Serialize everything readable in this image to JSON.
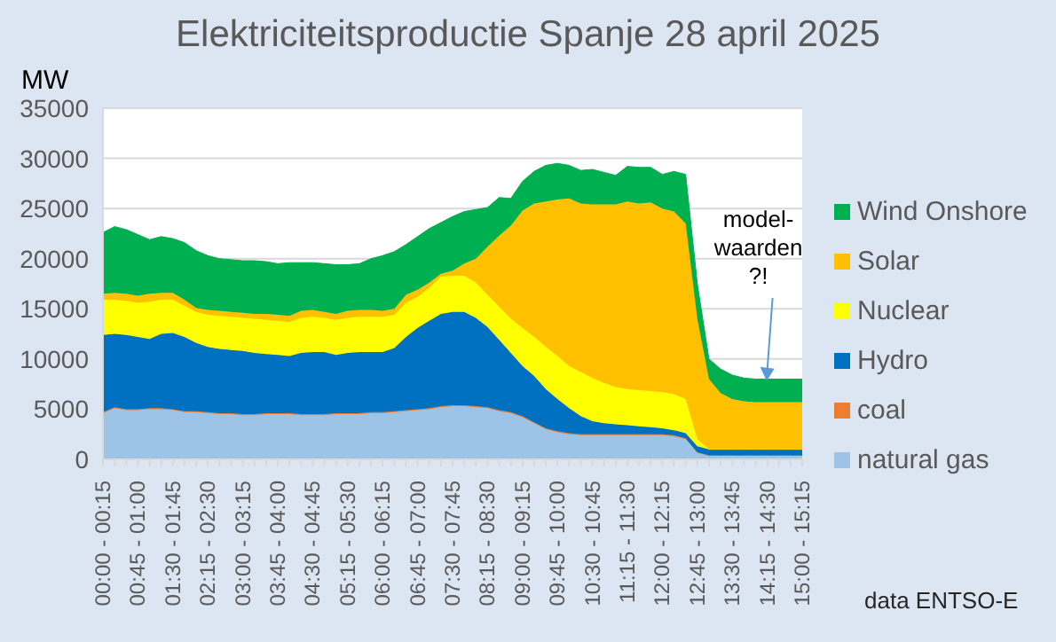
{
  "chart_data": {
    "type": "area",
    "title": "Elektriciteitsproductie Spanje 28 april 2025",
    "ylabel": "MW",
    "categories": [
      "00:00 - 00:15",
      null,
      null,
      "00:45 - 01:00",
      null,
      null,
      "01:30 - 01:45",
      null,
      null,
      "02:15 - 02:30",
      null,
      null,
      "03:00 - 03:15",
      null,
      null,
      "03:45 - 04:00",
      null,
      null,
      "04:30 - 04:45",
      null,
      null,
      "05:15 - 05:30",
      null,
      null,
      "06:00 - 06:15",
      null,
      null,
      "06:45 - 07:00",
      null,
      null,
      "07:30 - 07:45",
      null,
      null,
      "08:15 - 08:30",
      null,
      null,
      "09:00 - 09:15",
      null,
      null,
      "09:45 - 10:00",
      null,
      null,
      "10:30 - 10:45",
      null,
      null,
      "11:15 - 11:30",
      null,
      null,
      "12:00 - 12:15",
      null,
      null,
      "12:45 - 13:00",
      null,
      null,
      "13:30 - 13:45",
      null,
      null,
      "14:15 - 14:30",
      null,
      null,
      "15:00 - 15:15"
    ],
    "series": [
      {
        "name": "natural gas",
        "color": "#9dc3e6",
        "values": [
          4600,
          5100,
          4900,
          4900,
          5000,
          5000,
          4900,
          4700,
          4700,
          4600,
          4500,
          4500,
          4400,
          4400,
          4500,
          4500,
          4500,
          4400,
          4400,
          4400,
          4500,
          4500,
          4500,
          4600,
          4600,
          4700,
          4800,
          4900,
          5000,
          5200,
          5300,
          5300,
          5200,
          5100,
          4800,
          4600,
          4200,
          3600,
          3000,
          2700,
          2500,
          2400,
          2400,
          2400,
          2400,
          2400,
          2400,
          2400,
          2400,
          2300,
          2000,
          700,
          400,
          400,
          400,
          400,
          400,
          400,
          400,
          400,
          400
        ]
      },
      {
        "name": "coal",
        "color": "#ed7d31",
        "values": [
          100,
          100,
          100,
          100,
          100,
          100,
          100,
          100,
          100,
          100,
          100,
          100,
          100,
          100,
          100,
          100,
          100,
          100,
          100,
          100,
          100,
          100,
          100,
          100,
          100,
          100,
          100,
          100,
          100,
          100,
          100,
          100,
          100,
          100,
          100,
          100,
          100,
          100,
          100,
          100,
          100,
          100,
          100,
          100,
          100,
          100,
          100,
          100,
          100,
          100,
          100,
          0,
          0,
          0,
          0,
          0,
          0,
          0,
          0,
          0,
          0
        ]
      },
      {
        "name": "Hydro",
        "color": "#0070c0",
        "values": [
          7700,
          7300,
          7400,
          7200,
          6900,
          7400,
          7600,
          7400,
          6800,
          6500,
          6400,
          6300,
          6300,
          6100,
          5900,
          5800,
          5700,
          6100,
          6200,
          6200,
          5800,
          6000,
          6100,
          6000,
          6000,
          6300,
          7300,
          8100,
          8700,
          9200,
          9300,
          9300,
          8800,
          8000,
          7000,
          5900,
          5000,
          4600,
          3900,
          3200,
          2500,
          1800,
          1300,
          1100,
          1000,
          900,
          800,
          700,
          600,
          500,
          500,
          600,
          600,
          600,
          600,
          600,
          600,
          600,
          600,
          600,
          600
        ]
      },
      {
        "name": "Nuclear",
        "color": "#ffff00",
        "values": [
          3500,
          3400,
          3400,
          3400,
          3700,
          3400,
          3300,
          3100,
          3100,
          3200,
          3300,
          3300,
          3300,
          3400,
          3400,
          3400,
          3400,
          3500,
          3500,
          3400,
          3500,
          3500,
          3500,
          3500,
          3500,
          3300,
          3400,
          3100,
          3300,
          3700,
          3600,
          3600,
          3500,
          3200,
          3300,
          3400,
          3800,
          3900,
          4200,
          4300,
          4200,
          4400,
          4300,
          4000,
          3700,
          3600,
          3600,
          3600,
          3600,
          3600,
          3400,
          700,
          0,
          0,
          0,
          0,
          0,
          0,
          0,
          0,
          0
        ]
      },
      {
        "name": "Solar",
        "color": "#ffc000",
        "values": [
          600,
          700,
          700,
          700,
          800,
          700,
          700,
          600,
          400,
          500,
          500,
          500,
          500,
          500,
          600,
          600,
          600,
          700,
          700,
          600,
          600,
          700,
          700,
          700,
          600,
          600,
          800,
          700,
          500,
          300,
          500,
          1200,
          2400,
          4800,
          7100,
          9300,
          11700,
          13300,
          14500,
          15600,
          16700,
          16800,
          17300,
          17800,
          18200,
          18700,
          18600,
          18800,
          18300,
          18200,
          17500,
          12000,
          7000,
          5600,
          5000,
          4800,
          4700,
          4700,
          4700,
          4700,
          4700
        ]
      },
      {
        "name": "Wind Onshore",
        "color": "#00b050",
        "values": [
          6100,
          6600,
          6400,
          6100,
          5400,
          5600,
          5400,
          5700,
          5700,
          5400,
          5200,
          5200,
          5200,
          5300,
          5200,
          5100,
          5300,
          4800,
          4700,
          4800,
          4900,
          4600,
          4600,
          5100,
          5500,
          5700,
          5000,
          5300,
          5400,
          5100,
          5400,
          5200,
          4900,
          3900,
          3800,
          2700,
          2900,
          3200,
          3600,
          3600,
          3300,
          3300,
          3500,
          3200,
          2900,
          3500,
          3600,
          3500,
          3400,
          4000,
          4900,
          3500,
          2000,
          2400,
          2400,
          2300,
          2300,
          2300,
          2300,
          2300,
          2300
        ]
      }
    ],
    "stacked": true,
    "ylim": [
      0,
      35000
    ],
    "yticks": [
      0,
      5000,
      10000,
      15000,
      20000,
      25000,
      30000,
      35000
    ],
    "grid": "y",
    "legend": "right",
    "annotations": [
      {
        "text": "model-\nwaarden\n?!",
        "x": "14:15 - 14:30",
        "y": 7800
      },
      "data ENTSO-E"
    ]
  }
}
